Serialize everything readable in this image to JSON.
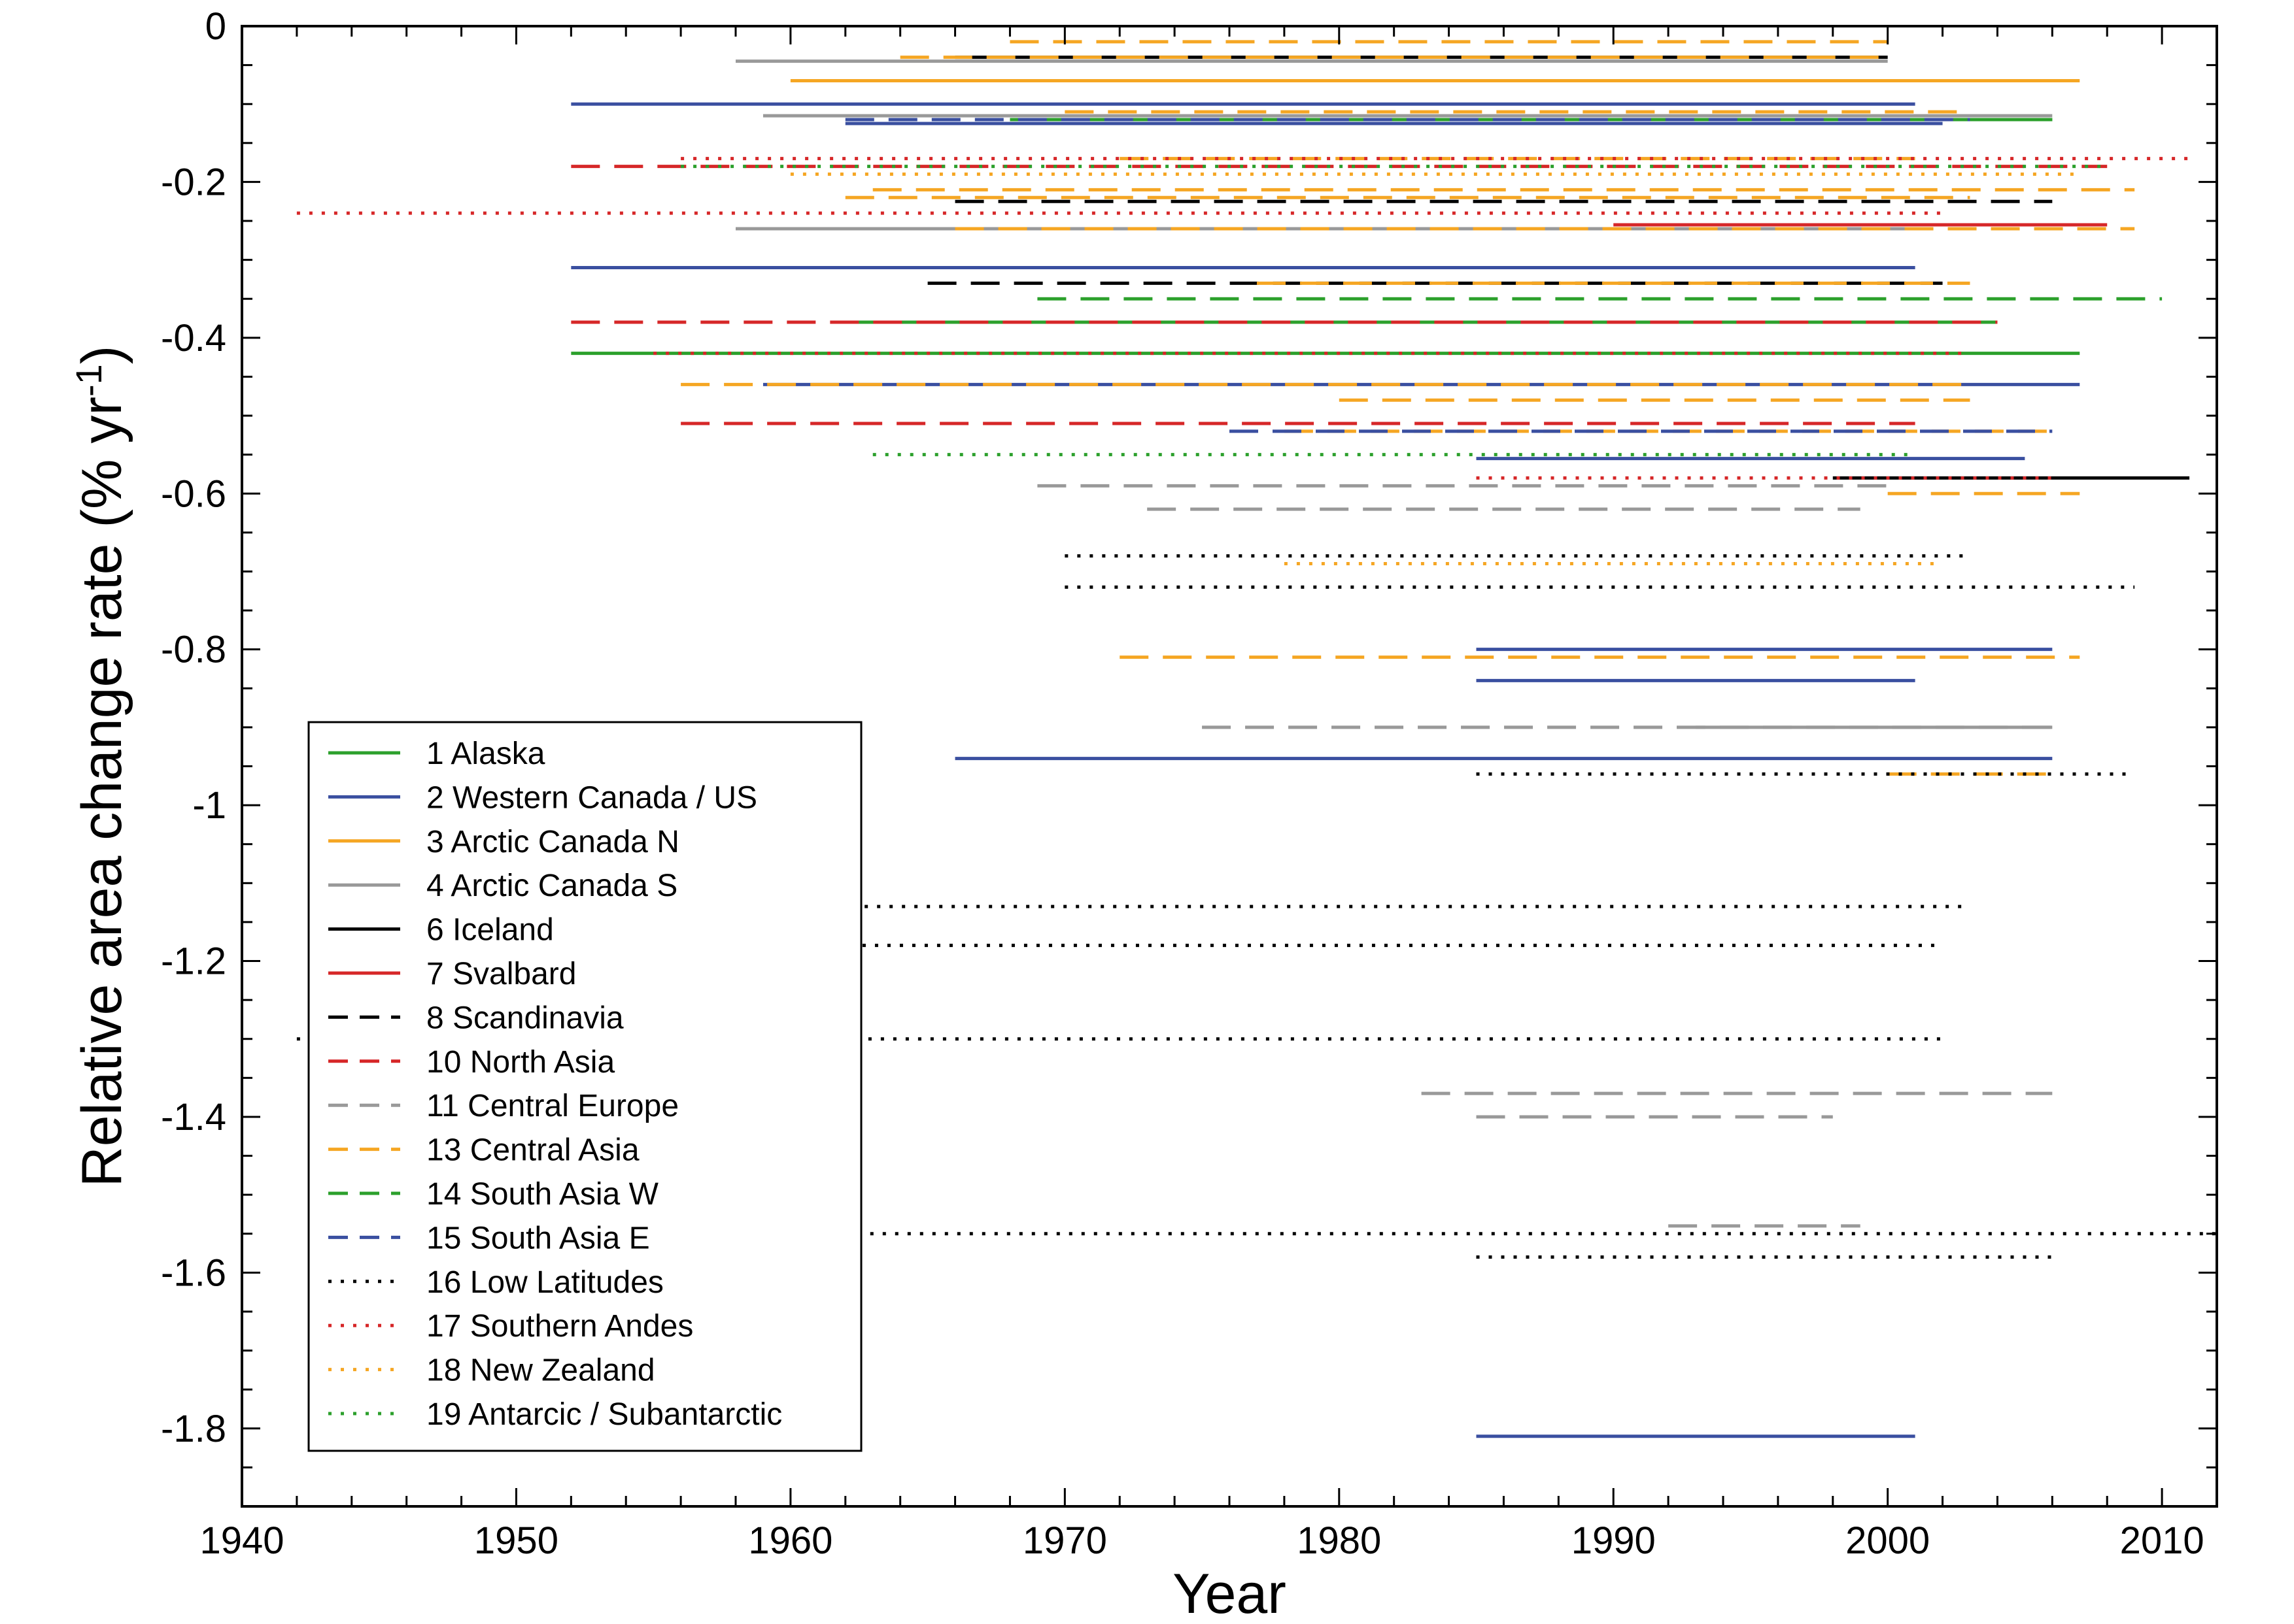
{
  "chart_data": {
    "type": "line",
    "title": "",
    "xlabel": "Year",
    "ylabel": "Relative area change rate (% yr",
    "ylabel_sup": "-1",
    "ylabel_end": ")",
    "xlim": [
      1940,
      2012
    ],
    "ylim": [
      -1.9,
      0
    ],
    "xticks": [
      1940,
      1950,
      1960,
      1970,
      1980,
      1990,
      2000,
      2010
    ],
    "xtick_labels": [
      "1940",
      "1950",
      "1960",
      "1970",
      "1980",
      "1990",
      "2000",
      "2010"
    ],
    "yticks": [
      0,
      -0.2,
      -0.4,
      -0.6,
      -0.8,
      -1.0,
      -1.2,
      -1.4,
      -1.6,
      -1.8
    ],
    "ytick_labels": [
      "0",
      "-0.2",
      "-0.4",
      "-0.6",
      "-0.8",
      "-1",
      "-1.2",
      "-1.4",
      "-1.6",
      "-1.8"
    ],
    "grid": false,
    "legend_position": "bottom-left",
    "series": [
      {
        "name": "1 Alaska",
        "color": "#2ca02c",
        "style": "solid",
        "segments": [
          [
            1952,
            2007,
            -0.42
          ],
          [
            1962,
            2004,
            -0.38
          ],
          [
            1968,
            2006,
            -0.12
          ]
        ]
      },
      {
        "name": "2 Western Canada / US",
        "color": "#3a4fa0",
        "style": "solid",
        "segments": [
          [
            1952,
            2001,
            -0.1
          ],
          [
            1952,
            2001,
            -0.31
          ],
          [
            1959,
            2007,
            -0.46
          ],
          [
            1962,
            2002,
            -0.125
          ],
          [
            1966,
            2006,
            -0.94
          ],
          [
            1985,
            2001,
            -0.84
          ],
          [
            1985,
            2006,
            -0.8
          ],
          [
            1985,
            2005,
            -0.555
          ],
          [
            1985,
            2001,
            -1.81
          ]
        ]
      },
      {
        "name": "3 Arctic Canada N",
        "color": "#f5a623",
        "style": "solid",
        "segments": [
          [
            1960,
            2007,
            -0.07
          ]
        ]
      },
      {
        "name": "4 Arctic Canada S",
        "color": "#999999",
        "style": "solid",
        "segments": [
          [
            1958,
            2000,
            -0.045
          ],
          [
            1958,
            2001,
            -0.26
          ],
          [
            1959,
            2006,
            -0.115
          ],
          [
            1993,
            2006,
            -0.9
          ]
        ]
      },
      {
        "name": "6 Iceland",
        "color": "#000000",
        "style": "solid",
        "segments": [
          [
            1998,
            2011,
            -0.58
          ],
          [
            1966,
            2000,
            -0.04
          ]
        ]
      },
      {
        "name": "7 Svalbard",
        "color": "#d62728",
        "style": "solid",
        "segments": [
          [
            1990,
            2008,
            -0.255
          ]
        ]
      },
      {
        "name": "8 Scandinavia",
        "color": "#000000",
        "style": "dashed",
        "segments": [
          [
            1965,
            2002,
            -0.33
          ],
          [
            1966,
            2006,
            -0.225
          ]
        ]
      },
      {
        "name": "10 North Asia",
        "color": "#d62728",
        "style": "dashed",
        "segments": [
          [
            1952,
            2008,
            -0.18
          ],
          [
            1952,
            2004,
            -0.38
          ],
          [
            1956,
            2001,
            -0.51
          ]
        ]
      },
      {
        "name": "11 Central Europe",
        "color": "#999999",
        "style": "dashed",
        "segments": [
          [
            1969,
            2000,
            -0.59
          ],
          [
            1973,
            1999,
            -0.62
          ],
          [
            1975,
            2006,
            -0.9
          ],
          [
            1983,
            2006,
            -1.37
          ],
          [
            1985,
            1998,
            -1.4
          ],
          [
            1992,
            1999,
            -1.54
          ]
        ]
      },
      {
        "name": "13 Central Asia",
        "color": "#f5a623",
        "style": "dashed",
        "segments": [
          [
            1968,
            2000,
            -0.02
          ],
          [
            1964,
            2000,
            -0.04
          ],
          [
            1970,
            2003,
            -0.11
          ],
          [
            1972,
            2001,
            -0.17
          ],
          [
            1963,
            2009,
            -0.21
          ],
          [
            1962,
            2003,
            -0.22
          ],
          [
            1966,
            2009,
            -0.26
          ],
          [
            1977,
            2003,
            -0.33
          ],
          [
            1956,
            2003,
            -0.46
          ],
          [
            1980,
            2003,
            -0.48
          ],
          [
            1978,
            2006,
            -0.52
          ],
          [
            2000,
            2007,
            -0.6
          ],
          [
            1972,
            2007,
            -0.81
          ],
          [
            2000,
            2006,
            -0.96
          ]
        ]
      },
      {
        "name": "14 South Asia W",
        "color": "#2ca02c",
        "style": "dashed",
        "segments": [
          [
            1969,
            2010,
            -0.35
          ],
          [
            1996,
            2006,
            -0.12
          ]
        ]
      },
      {
        "name": "15 South Asia E",
        "color": "#3a4fa0",
        "style": "dashed",
        "segments": [
          [
            1976,
            2006,
            -0.52
          ],
          [
            1962,
            2003,
            -0.12
          ]
        ]
      },
      {
        "name": "16 Low Latitudes",
        "color": "#000000",
        "style": "dotted",
        "segments": [
          [
            1970,
            2003,
            -0.68
          ],
          [
            1970,
            2009,
            -0.72
          ],
          [
            1985,
            2009,
            -0.96
          ],
          [
            1955,
            2003,
            -1.13
          ],
          [
            1959,
            2002,
            -1.18
          ],
          [
            1942,
            2002,
            -1.3
          ],
          [
            1962,
            2012,
            -1.55
          ],
          [
            1985,
            2006,
            -1.58
          ]
        ]
      },
      {
        "name": "17 Southern Andes",
        "color": "#d62728",
        "style": "dotted",
        "segments": [
          [
            1942,
            2002,
            -0.24
          ],
          [
            1956,
            2011,
            -0.17
          ],
          [
            1955,
            2003,
            -0.42
          ],
          [
            1985,
            2006,
            -0.58
          ]
        ]
      },
      {
        "name": "18 New Zealand",
        "color": "#f5a623",
        "style": "dotted",
        "segments": [
          [
            1978,
            2002,
            -0.69
          ],
          [
            1960,
            2007,
            -0.19
          ]
        ]
      },
      {
        "name": "19 Antarcic / Subantarctic",
        "color": "#2ca02c",
        "style": "dotted",
        "segments": [
          [
            1963,
            2001,
            -0.55
          ],
          [
            1956,
            2008,
            -0.18
          ]
        ]
      }
    ]
  }
}
